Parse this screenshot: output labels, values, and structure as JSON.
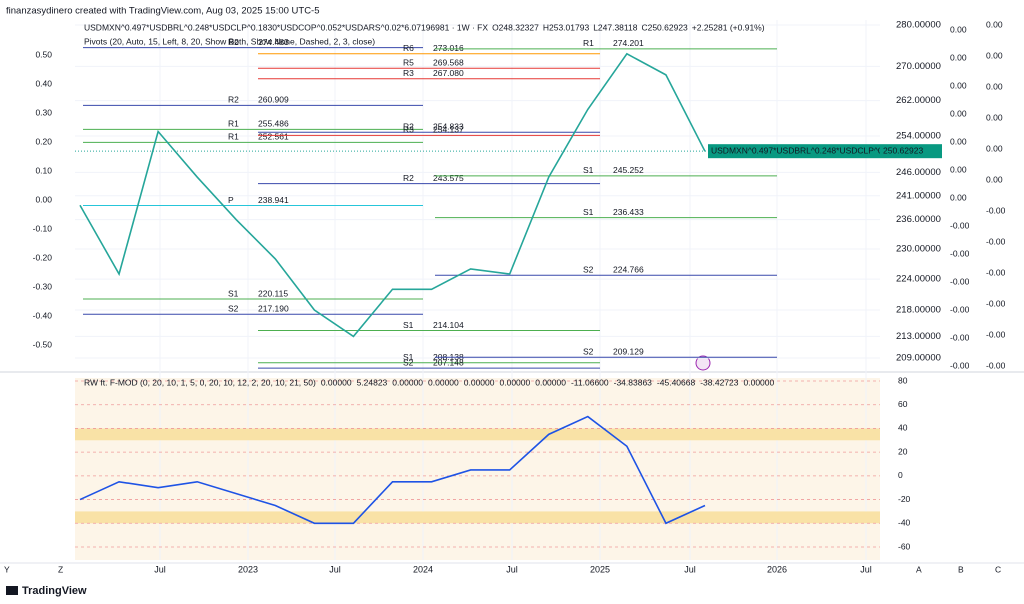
{
  "header": {
    "author": "finanzasydinero created with TradingView.com, Aug 03, 2025 15:00 UTC-5"
  },
  "legend": {
    "symbol": "USDMXN^0.497*USDBRL^0.248*USDCLP^0.1830*USDCOP^0.052*USDARS^0.02*6.07196981 · 1W · FX",
    "open": "O248.32327",
    "high": "H253.01793",
    "low": "L247.38118",
    "close": "C250.62923",
    "change": "+2.25281 (+0.91%)",
    "pivots": "Pivots (20, Auto, 15, Left, 8, 20, Show Both, Show None, Dashed, 2, 3, close)"
  },
  "price_scale": {
    "ticks": [
      {
        "value": 280,
        "label": "280.00000"
      },
      {
        "value": 270,
        "label": "270.00000"
      },
      {
        "value": 262,
        "label": "262.00000"
      },
      {
        "value": 254,
        "label": "254.00000"
      },
      {
        "value": 246,
        "label": "246.00000"
      },
      {
        "value": 241,
        "label": "241.00000"
      },
      {
        "value": 236,
        "label": "236.00000"
      },
      {
        "value": 230,
        "label": "230.00000"
      },
      {
        "value": 224,
        "label": "224.00000"
      },
      {
        "value": 218,
        "label": "218.00000"
      },
      {
        "value": 213,
        "label": "213.00000"
      },
      {
        "value": 209,
        "label": "209.00000"
      }
    ],
    "log": true
  },
  "last_price": {
    "name": "USDMXN^0.497*USDBRL^0.248*USDCLP^0.18...",
    "value": 250.62923,
    "label": "250.62923"
  },
  "closes": [
    239,
    225,
    255,
    245,
    236,
    228,
    218,
    213,
    222,
    222,
    226,
    225,
    245,
    260,
    273,
    268,
    250.6
  ],
  "pivot_sets": [
    [
      {
        "level": "R2",
        "value": 274.483,
        "label": "274.483",
        "color": "#3949ab"
      },
      {
        "level": "R2",
        "value": 260.909,
        "label": "260.909",
        "color": "#3949ab"
      },
      {
        "level": "R1",
        "value": 255.486,
        "label": "255.486",
        "color": "#4caf50"
      },
      {
        "level": "R1",
        "value": 252.561,
        "label": "252.561",
        "color": "#4caf50"
      },
      {
        "level": "P",
        "value": 238.941,
        "label": "238.941",
        "color": "#26c6da"
      },
      {
        "level": "S1",
        "value": 220.115,
        "label": "220.115",
        "color": "#4caf50"
      },
      {
        "level": "S2",
        "value": 217.19,
        "label": "217.190",
        "color": "#3949ab"
      }
    ],
    [
      {
        "level": "R6",
        "value": 273.016,
        "label": "273.016",
        "color": "#ff9800"
      },
      {
        "level": "R5",
        "value": 269.568,
        "label": "269.568",
        "color": "#e53935"
      },
      {
        "level": "R3",
        "value": 267.08,
        "label": "267.080",
        "color": "#e53935"
      },
      {
        "level": "R2",
        "value": 254.833,
        "label": "254.833",
        "color": "#3949ab"
      },
      {
        "level": "R3",
        "value": 254.137,
        "label": "254.137",
        "color": "#e53935"
      },
      {
        "level": "R2",
        "value": 243.575,
        "label": "243.575",
        "color": "#3949ab"
      },
      {
        "level": "S1",
        "value": 214.104,
        "label": "214.104",
        "color": "#4caf50"
      },
      {
        "level": "S1",
        "value": 208.138,
        "label": "208.138",
        "color": "#4caf50"
      },
      {
        "level": "S2",
        "value": 207.148,
        "label": "207.148",
        "color": "#3949ab"
      }
    ],
    [
      {
        "level": "R1",
        "value": 274.201,
        "label": "274.201",
        "color": "#4caf50"
      },
      {
        "level": "S1",
        "value": 245.252,
        "label": "245.252",
        "color": "#4caf50"
      },
      {
        "level": "S1",
        "value": 236.433,
        "label": "236.433",
        "color": "#4caf50"
      },
      {
        "level": "S2",
        "value": 224.766,
        "label": "224.766",
        "color": "#3949ab"
      },
      {
        "level": "S2",
        "value": 209.129,
        "label": "209.129",
        "color": "#3949ab"
      }
    ]
  ],
  "left_scale": [
    "0.50",
    "0.40",
    "0.30",
    "0.20",
    "0.10",
    "0.00",
    "-0.10",
    "-0.20",
    "-0.30",
    "-0.40",
    "-0.50"
  ],
  "right_scale_a": [
    "0.00",
    "0.00",
    "0.00",
    "0.00",
    "0.00",
    "0.00",
    "0.00",
    "-0.00",
    "-0.00",
    "-0.00",
    "-0.00",
    "-0.00",
    "-0.00"
  ],
  "right_scale_b": [
    "0.00",
    "0.00",
    "0.00",
    "0.00",
    "0.00",
    "0.00",
    "-0.00",
    "-0.00",
    "-0.00",
    "-0.00",
    "-0.00",
    "-0.00"
  ],
  "time_axis": [
    "Jul",
    "2023",
    "Jul",
    "2024",
    "Jul",
    "2025",
    "Jul",
    "2026",
    "Jul"
  ],
  "indicator": {
    "title": "RW ft. F-MOD (0, 20, 10, 1, 5, 0, 20, 10, 12, 2, 20, 10, 21, 50)",
    "values": [
      {
        "text": "0.00000",
        "color": "#ff9800"
      },
      {
        "text": "5.24823",
        "color": "#9c27b0"
      },
      {
        "text": "0.00000",
        "color": "#e91e63"
      },
      {
        "text": "0.00000",
        "color": "#ba68c8"
      },
      {
        "text": "0.00000",
        "color": "#ba68c8"
      },
      {
        "text": "0.00000",
        "color": "#d50000"
      },
      {
        "text": "0.00000",
        "color": "#26a69a"
      },
      {
        "text": "-11.06600",
        "color": "#388e3c"
      },
      {
        "text": "-34.83863",
        "color": "#e53935"
      },
      {
        "text": "-45.40668",
        "color": "#1e53e5"
      },
      {
        "text": "-38.42723",
        "color": "#ff9800"
      },
      {
        "text": "0.00000",
        "color": "#d50000"
      }
    ],
    "ticks": [
      80,
      60,
      40,
      20,
      0,
      -20,
      -40,
      -60
    ],
    "line": [
      -20,
      -5,
      -10,
      -5,
      -15,
      -25,
      -40,
      -40,
      -5,
      -5,
      5,
      5,
      35,
      50,
      25,
      -40,
      -25
    ]
  },
  "footer": {
    "brand": "TradingView"
  }
}
